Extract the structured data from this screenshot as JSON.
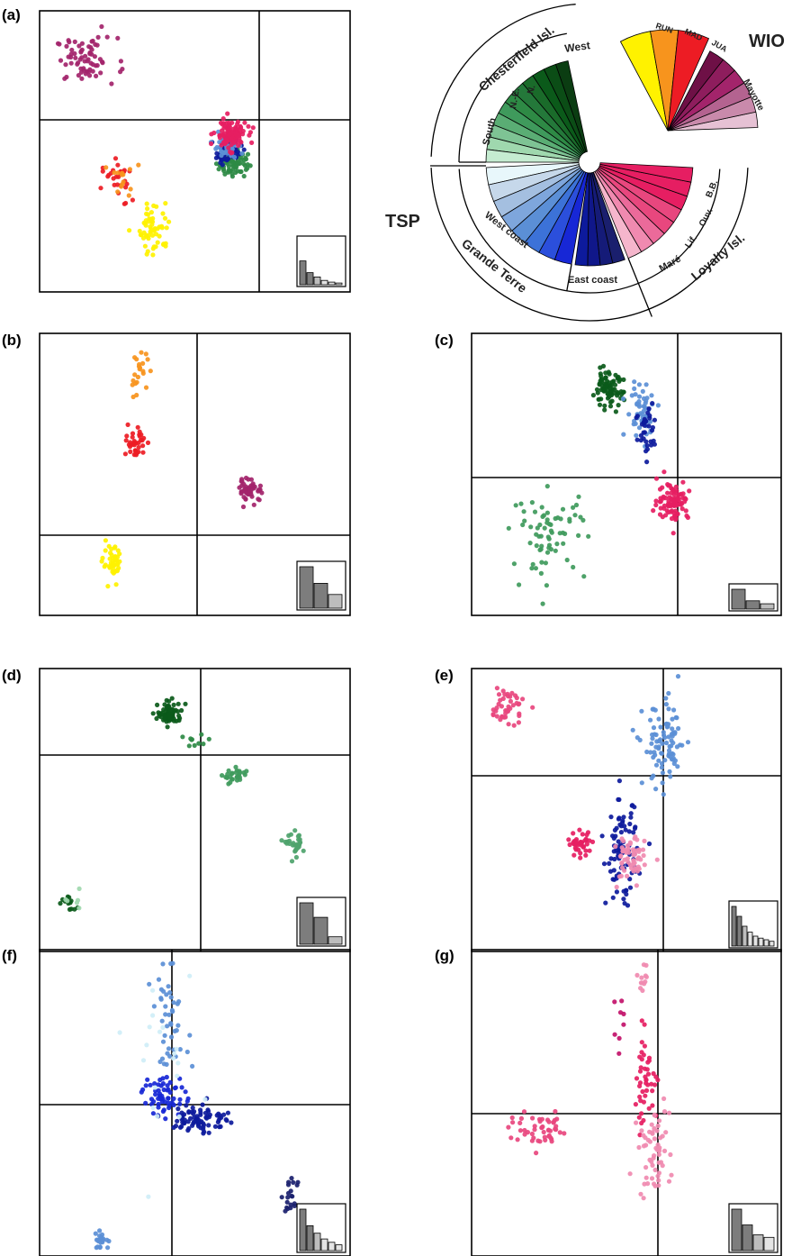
{
  "panel_labels": [
    "(a)",
    "(b)",
    "(c)",
    "(d)",
    "(e)",
    "(f)",
    "(g)"
  ],
  "legend": {
    "groups": [
      {
        "label": "TSP"
      },
      {
        "label": "WIO"
      }
    ],
    "regions": [
      {
        "label": "Chesterfield Isl."
      },
      {
        "label": "Grande Terre"
      },
      {
        "label": "Loyalty Isl."
      }
    ],
    "subregions": [
      {
        "label": "South",
        "color": "#0b5a1a"
      },
      {
        "label": "N.-E.",
        "color": "#2e8a45"
      },
      {
        "label": "N.",
        "color": "#3f9a5c"
      },
      {
        "label": "West",
        "color": "#7ec394"
      },
      {
        "label": "West coast",
        "color": "#5b8fd6"
      },
      {
        "label": "East coast",
        "color": "#0d1a9c"
      },
      {
        "label": "Maré",
        "color": "#f08ab0"
      },
      {
        "label": "Lif.",
        "color": "#eb6a9a"
      },
      {
        "label": "Ouv.",
        "color": "#e8477e"
      },
      {
        "label": "B.B.",
        "color": "#e61e62"
      },
      {
        "label": "RUN",
        "color": "#fff200"
      },
      {
        "label": "MAD",
        "color": "#f7941d"
      },
      {
        "label": "JUA",
        "color": "#ed1c24"
      },
      {
        "label": "Mayotte",
        "color": "#a3246b"
      }
    ]
  },
  "chart_data": [
    {
      "panel": "(a)",
      "type": "scatter",
      "xlim": [
        -1,
        1
      ],
      "ylim": [
        -1,
        1
      ],
      "eigenvalues": [
        0.55,
        0.28,
        0.18,
        0.1,
        0.06,
        0.04
      ],
      "series": [
        {
          "color": "#a3246b",
          "clusters": [
            {
              "x": -0.7,
              "y": 0.65,
              "sx": 0.1,
              "sy": 0.08,
              "n": 70
            }
          ]
        },
        {
          "color": "#ed1c24",
          "clusters": [
            {
              "x": -0.5,
              "y": -0.22,
              "sx": 0.05,
              "sy": 0.08,
              "n": 28
            }
          ]
        },
        {
          "color": "#f7941d",
          "clusters": [
            {
              "x": -0.47,
              "y": -0.19,
              "sx": 0.04,
              "sy": 0.08,
              "n": 14
            }
          ]
        },
        {
          "color": "#fff200",
          "clusters": [
            {
              "x": -0.26,
              "y": -0.55,
              "sx": 0.05,
              "sy": 0.09,
              "n": 60
            }
          ]
        },
        {
          "color": "#2e8a45",
          "clusters": [
            {
              "x": 0.24,
              "y": -0.08,
              "sx": 0.05,
              "sy": 0.05,
              "n": 70
            }
          ]
        },
        {
          "color": "#0d1a9c",
          "clusters": [
            {
              "x": 0.22,
              "y": 0.0,
              "sx": 0.04,
              "sy": 0.04,
              "n": 70
            }
          ]
        },
        {
          "color": "#5b8fd6",
          "clusters": [
            {
              "x": 0.2,
              "y": 0.03,
              "sx": 0.04,
              "sy": 0.04,
              "n": 45
            }
          ]
        },
        {
          "color": "#e61e62",
          "clusters": [
            {
              "x": 0.23,
              "y": 0.12,
              "sx": 0.05,
              "sy": 0.05,
              "n": 120
            }
          ]
        }
      ]
    },
    {
      "panel": "(b)",
      "type": "scatter",
      "xlim": [
        -1,
        1
      ],
      "ylim": [
        -1,
        1
      ],
      "eigenvalues": [
        1.0,
        0.6,
        0.33
      ],
      "series": [
        {
          "color": "#f7941d",
          "clusters": [
            {
              "x": -0.36,
              "y": 0.72,
              "sx": 0.03,
              "sy": 0.07,
              "n": 22
            }
          ]
        },
        {
          "color": "#ed1c24",
          "clusters": [
            {
              "x": -0.38,
              "y": 0.22,
              "sx": 0.03,
              "sy": 0.06,
              "n": 38
            }
          ]
        },
        {
          "color": "#a3246b",
          "clusters": [
            {
              "x": 0.36,
              "y": -0.11,
              "sx": 0.04,
              "sy": 0.04,
              "n": 48
            }
          ]
        },
        {
          "color": "#fff200",
          "clusters": [
            {
              "x": -0.53,
              "y": -0.64,
              "sx": 0.03,
              "sy": 0.06,
              "n": 44
            }
          ]
        }
      ]
    },
    {
      "panel": "(c)",
      "type": "scatter",
      "xlim": [
        -1,
        1
      ],
      "ylim": [
        -1,
        1
      ],
      "eigenvalues": [
        1.0,
        0.42,
        0.27
      ],
      "series": [
        {
          "color": "#0b5a1a",
          "clusters": [
            {
              "x": -0.12,
              "y": 0.6,
              "sx": 0.05,
              "sy": 0.06,
              "n": 80
            }
          ]
        },
        {
          "color": "#3f9a5c",
          "clusters": [
            {
              "x": -0.5,
              "y": -0.42,
              "sx": 0.12,
              "sy": 0.15,
              "n": 70
            }
          ]
        },
        {
          "color": "#5b8fd6",
          "clusters": [
            {
              "x": 0.1,
              "y": 0.46,
              "sx": 0.05,
              "sy": 0.1,
              "n": 50
            }
          ]
        },
        {
          "color": "#0d1a9c",
          "clusters": [
            {
              "x": 0.14,
              "y": 0.3,
              "sx": 0.04,
              "sy": 0.12,
              "n": 35
            }
          ]
        },
        {
          "color": "#e61e62",
          "clusters": [
            {
              "x": 0.3,
              "y": -0.18,
              "sx": 0.05,
              "sy": 0.07,
              "n": 90
            }
          ]
        }
      ]
    },
    {
      "panel": "(d)",
      "type": "scatter",
      "xlim": [
        -1,
        1
      ],
      "ylim": [
        -1,
        1
      ],
      "eigenvalues": [
        1.0,
        0.65,
        0.18
      ],
      "series": [
        {
          "color": "#0b5a1a",
          "clusters": [
            {
              "x": -0.16,
              "y": 0.68,
              "sx": 0.04,
              "sy": 0.04,
              "n": 70
            },
            {
              "x": -0.82,
              "y": -0.66,
              "sx": 0.03,
              "sy": 0.03,
              "n": 14
            }
          ]
        },
        {
          "color": "#2e8a45",
          "clusters": [
            {
              "x": 0.0,
              "y": 0.48,
              "sx": 0.06,
              "sy": 0.04,
              "n": 10
            }
          ]
        },
        {
          "color": "#3f9a5c",
          "clusters": [
            {
              "x": 0.27,
              "y": 0.24,
              "sx": 0.04,
              "sy": 0.03,
              "n": 30
            }
          ]
        },
        {
          "color": "#4ea36c",
          "clusters": [
            {
              "x": 0.65,
              "y": -0.25,
              "sx": 0.03,
              "sy": 0.04,
              "n": 30
            }
          ]
        },
        {
          "color": "#9fd8ae",
          "clusters": [
            {
              "x": -0.8,
              "y": -0.62,
              "sx": 0.03,
              "sy": 0.03,
              "n": 6
            }
          ]
        }
      ]
    },
    {
      "panel": "(e)",
      "type": "scatter",
      "xlim": [
        -1,
        1
      ],
      "ylim": [
        -1,
        1
      ],
      "eigenvalues": [
        1.0,
        0.75,
        0.5,
        0.35,
        0.25,
        0.2,
        0.16,
        0.12
      ],
      "series": [
        {
          "color": "#e8477e",
          "clusters": [
            {
              "x": -0.77,
              "y": 0.73,
              "sx": 0.06,
              "sy": 0.07,
              "n": 45
            }
          ]
        },
        {
          "color": "#e61e62",
          "clusters": [
            {
              "x": -0.3,
              "y": -0.24,
              "sx": 0.04,
              "sy": 0.04,
              "n": 40
            }
          ]
        },
        {
          "color": "#0d1a9c",
          "clusters": [
            {
              "x": -0.03,
              "y": -0.3,
              "sx": 0.05,
              "sy": 0.18,
              "n": 90
            }
          ]
        },
        {
          "color": "#5b8fd6",
          "clusters": [
            {
              "x": 0.25,
              "y": 0.45,
              "sx": 0.07,
              "sy": 0.15,
              "n": 90
            }
          ]
        },
        {
          "color": "#f08ab0",
          "clusters": [
            {
              "x": 0.02,
              "y": -0.36,
              "sx": 0.05,
              "sy": 0.1,
              "n": 60
            }
          ]
        }
      ]
    },
    {
      "panel": "(f)",
      "type": "scatter",
      "xlim": [
        -1,
        1
      ],
      "ylim": [
        -1,
        1
      ],
      "eigenvalues": [
        1.0,
        0.6,
        0.42,
        0.28,
        0.2,
        0.14
      ],
      "series": [
        {
          "color": "#5b8fd6",
          "clusters": [
            {
              "x": -0.16,
              "y": 0.55,
              "sx": 0.06,
              "sy": 0.15,
              "n": 45
            },
            {
              "x": -0.6,
              "y": -0.9,
              "sx": 0.03,
              "sy": 0.03,
              "n": 22
            }
          ]
        },
        {
          "color": "#1727d6",
          "clusters": [
            {
              "x": -0.2,
              "y": 0.05,
              "sx": 0.07,
              "sy": 0.07,
              "n": 60
            }
          ]
        },
        {
          "color": "#0d1a9c",
          "clusters": [
            {
              "x": 0.04,
              "y": -0.1,
              "sx": 0.09,
              "sy": 0.05,
              "n": 80
            }
          ]
        },
        {
          "color": "#1a1f6e",
          "clusters": [
            {
              "x": 0.62,
              "y": -0.62,
              "sx": 0.03,
              "sy": 0.06,
              "n": 20
            }
          ]
        },
        {
          "color": "#cfeef7",
          "clusters": [
            {
              "x": -0.18,
              "y": 0.1,
              "sx": 0.1,
              "sy": 0.3,
              "n": 20
            }
          ]
        }
      ]
    },
    {
      "panel": "(g)",
      "type": "scatter",
      "xlim": [
        -1,
        1
      ],
      "ylim": [
        -1,
        1
      ],
      "eigenvalues": [
        1.0,
        0.62,
        0.38,
        0.32
      ],
      "series": [
        {
          "color": "#e8477e",
          "clusters": [
            {
              "x": -0.55,
              "y": -0.18,
              "sx": 0.1,
              "sy": 0.05,
              "n": 50
            }
          ]
        },
        {
          "color": "#e61e62",
          "clusters": [
            {
              "x": 0.12,
              "y": 0.15,
              "sx": 0.04,
              "sy": 0.15,
              "n": 45
            }
          ]
        },
        {
          "color": "#f08ab0",
          "clusters": [
            {
              "x": 0.18,
              "y": -0.32,
              "sx": 0.05,
              "sy": 0.15,
              "n": 60
            },
            {
              "x": 0.1,
              "y": 0.82,
              "sx": 0.03,
              "sy": 0.06,
              "n": 12
            }
          ]
        },
        {
          "color": "#c2126a",
          "clusters": [
            {
              "x": -0.05,
              "y": 0.55,
              "sx": 0.03,
              "sy": 0.08,
              "n": 8
            }
          ]
        }
      ]
    }
  ]
}
